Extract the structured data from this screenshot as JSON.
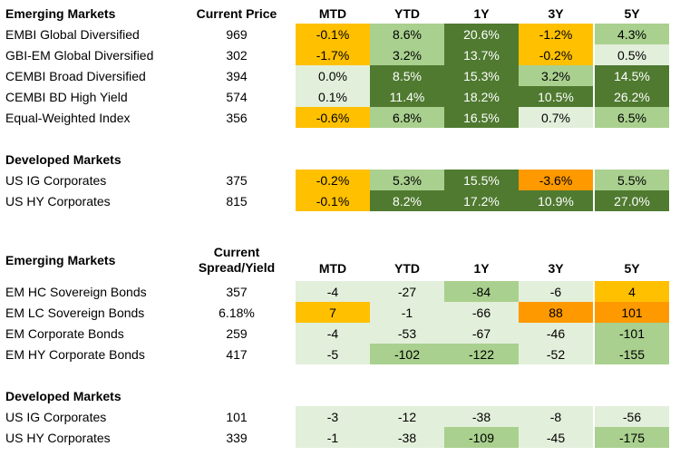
{
  "colors": {
    "dark_green": "#4f7a30",
    "mid_green": "#a9d08e",
    "light_green": "#e2efda",
    "yellow": "#ffc000",
    "orange": "#ff9900",
    "white": "#ffffff"
  },
  "columns": [
    "MTD",
    "YTD",
    "1Y",
    "3Y",
    "5Y"
  ],
  "table1": {
    "header": {
      "section": "Emerging Markets",
      "price_label": "Current Price"
    },
    "em_rows": [
      {
        "name": "EMBI Global Diversified",
        "price": "969",
        "values": [
          "-0.1%",
          "8.6%",
          "20.6%",
          "-1.2%",
          "4.3%"
        ],
        "colors": [
          "yellow",
          "mid_green",
          "dark_green",
          "yellow",
          "mid_green"
        ]
      },
      {
        "name": "GBI-EM Global Diversified",
        "price": "302",
        "values": [
          "-1.7%",
          "3.2%",
          "13.7%",
          "-0.2%",
          "0.5%"
        ],
        "colors": [
          "yellow",
          "mid_green",
          "dark_green",
          "yellow",
          "light_green"
        ]
      },
      {
        "name": "CEMBI Broad Diversified",
        "price": "394",
        "values": [
          "0.0%",
          "8.5%",
          "15.3%",
          "3.2%",
          "14.5%"
        ],
        "colors": [
          "light_green",
          "dark_green",
          "dark_green",
          "mid_green",
          "dark_green"
        ]
      },
      {
        "name": "CEMBI BD High Yield",
        "price": "574",
        "values": [
          "0.1%",
          "11.4%",
          "18.2%",
          "10.5%",
          "26.2%"
        ],
        "colors": [
          "light_green",
          "dark_green",
          "dark_green",
          "dark_green",
          "dark_green"
        ]
      },
      {
        "name": "Equal-Weighted Index",
        "price": "356",
        "values": [
          "-0.6%",
          "6.8%",
          "16.5%",
          "0.7%",
          "6.5%"
        ],
        "colors": [
          "yellow",
          "mid_green",
          "dark_green",
          "light_green",
          "mid_green"
        ]
      }
    ],
    "dm_section": "Developed Markets",
    "dm_rows": [
      {
        "name": "US IG Corporates",
        "price": "375",
        "values": [
          "-0.2%",
          "5.3%",
          "15.5%",
          "-3.6%",
          "5.5%"
        ],
        "colors": [
          "yellow",
          "mid_green",
          "dark_green",
          "orange",
          "mid_green"
        ]
      },
      {
        "name": "US HY Corporates",
        "price": "815",
        "values": [
          "-0.1%",
          "8.2%",
          "17.2%",
          "10.9%",
          "27.0%"
        ],
        "colors": [
          "yellow",
          "dark_green",
          "dark_green",
          "dark_green",
          "dark_green"
        ]
      }
    ]
  },
  "table2": {
    "header": {
      "section": "Emerging Markets",
      "price_label_line1": "Current",
      "price_label_line2": "Spread/Yield"
    },
    "em_rows": [
      {
        "name": "EM HC Sovereign Bonds",
        "price": "357",
        "values": [
          "-4",
          "-27",
          "-84",
          "-6",
          "4"
        ],
        "colors": [
          "light_green",
          "light_green",
          "mid_green",
          "light_green",
          "yellow"
        ]
      },
      {
        "name": "EM LC Sovereign Bonds",
        "price": "6.18%",
        "values": [
          "7",
          "-1",
          "-66",
          "88",
          "101"
        ],
        "colors": [
          "yellow",
          "light_green",
          "light_green",
          "orange",
          "orange"
        ]
      },
      {
        "name": "EM Corporate Bonds",
        "price": "259",
        "values": [
          "-4",
          "-53",
          "-67",
          "-46",
          "-101"
        ],
        "colors": [
          "light_green",
          "light_green",
          "light_green",
          "light_green",
          "mid_green"
        ]
      },
      {
        "name": "EM HY Corporate Bonds",
        "price": "417",
        "values": [
          "-5",
          "-102",
          "-122",
          "-52",
          "-155"
        ],
        "colors": [
          "light_green",
          "mid_green",
          "mid_green",
          "light_green",
          "mid_green"
        ]
      }
    ],
    "dm_section": "Developed Markets",
    "dm_rows": [
      {
        "name": "US IG Corporates",
        "price": "101",
        "values": [
          "-3",
          "-12",
          "-38",
          "-8",
          "-56"
        ],
        "colors": [
          "light_green",
          "light_green",
          "light_green",
          "light_green",
          "light_green"
        ]
      },
      {
        "name": "US HY Corporates",
        "price": "339",
        "values": [
          "-1",
          "-38",
          "-109",
          "-45",
          "-175"
        ],
        "colors": [
          "light_green",
          "light_green",
          "mid_green",
          "light_green",
          "mid_green"
        ]
      }
    ]
  }
}
